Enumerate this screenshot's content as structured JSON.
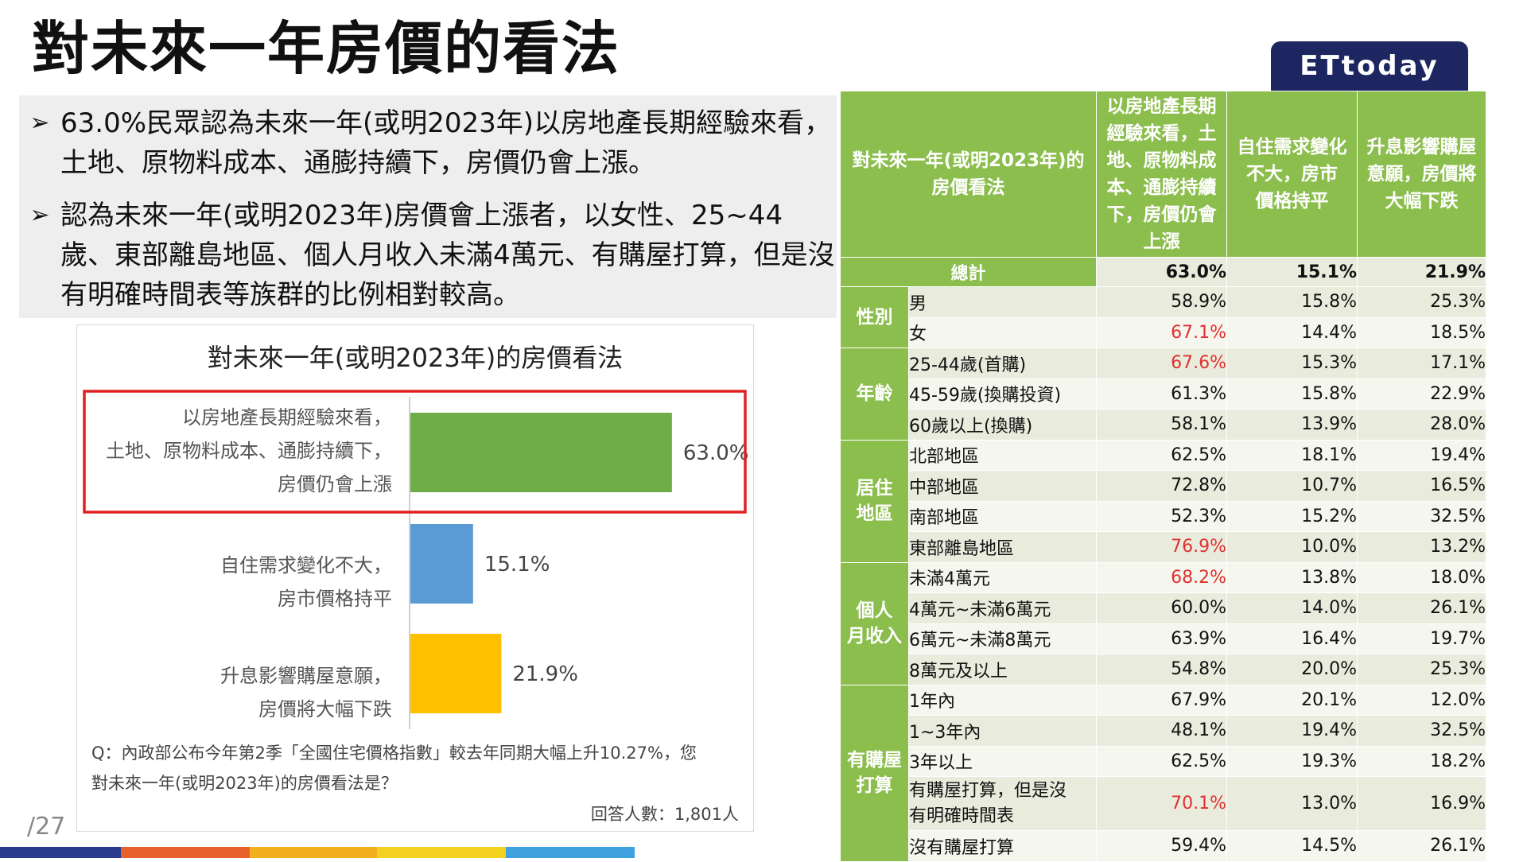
{
  "page": {
    "title": "對未來一年房價的看法",
    "logo": "ETtoday",
    "page_number": "/27",
    "bullets": [
      "63.0%民眾認為未來一年(或明2023年)以房地產長期經驗來看，土地、原物料成本、通膨持續下，房價仍會上漲。",
      "認為未來一年(或明2023年)房價會上漲者，以女性、25~44歲、東部離島地區、個人月收入未滿4萬元、有購屋打算，但是沒有明確時間表等族群的比例相對較高。"
    ],
    "bullet_marker": "➢",
    "bottom_bar_colors": [
      "#2a3a8c",
      "#e8602c",
      "#f2b01e",
      "#f3d21f",
      "#3fa2e0"
    ]
  },
  "chart_data": {
    "type": "bar",
    "orientation": "horizontal",
    "title": "對未來一年(或明2023年)的房價看法",
    "categories": [
      [
        "以房地產長期經驗來看，",
        "土地、原物料成本、通膨持續下，",
        "房價仍會上漲"
      ],
      [
        "自住需求變化不大，",
        "房市價格持平"
      ],
      [
        "升息影響購屋意願，",
        "房價將大幅下跌"
      ]
    ],
    "values": [
      63.0,
      15.1,
      21.9
    ],
    "value_labels": [
      "63.0%",
      "15.1%",
      "21.9%"
    ],
    "colors": [
      "#70ad47",
      "#5b9bd5",
      "#ffc000"
    ],
    "highlight_index": 0,
    "highlight_color": "#e02020",
    "xlim": [
      0,
      100
    ],
    "question": [
      "Q：內政部公布今年第2季「全國住宅價格指數」較去年同期大幅上升10.27%，您",
      "對未來一年(或明2023年)的房價看法是？"
    ],
    "sample_size": "回答人數：1,801人"
  },
  "table": {
    "headers": [
      "對未來一年(或明2023年)的房價看法",
      "以房地產長期經驗來看，土地、原物料成本、通膨持續下，房價仍會上漲",
      "自住需求變化不大，房市價格持平",
      "升息影響購屋意願，房價將大幅下跌"
    ],
    "header_lines": [
      [
        "對未來一年(或明2023年)的",
        "房價看法"
      ],
      [
        "以房地產長期",
        "經驗來看，土",
        "地、原物料成",
        "本、通膨持續",
        "下，房價仍會",
        "上漲"
      ],
      [
        "自住需求變化",
        "不大，房市",
        "價格持平"
      ],
      [
        "升息影響購屋",
        "意願，房價將",
        "大幅下跌"
      ]
    ],
    "total": {
      "label": "總計",
      "values": [
        "63.0%",
        "15.1%",
        "21.9%"
      ]
    },
    "groups": [
      {
        "name": [
          "性別"
        ],
        "rows": [
          {
            "label": "男",
            "values": [
              "58.9%",
              "15.8%",
              "25.3%"
            ],
            "highlight": false
          },
          {
            "label": "女",
            "values": [
              "67.1%",
              "14.4%",
              "18.5%"
            ],
            "highlight": true
          }
        ]
      },
      {
        "name": [
          "年齡"
        ],
        "rows": [
          {
            "label": "25-44歲(首購)",
            "values": [
              "67.6%",
              "15.3%",
              "17.1%"
            ],
            "highlight": true
          },
          {
            "label": "45-59歲(換購投資)",
            "values": [
              "61.3%",
              "15.8%",
              "22.9%"
            ],
            "highlight": false
          },
          {
            "label": "60歲以上(換購)",
            "values": [
              "58.1%",
              "13.9%",
              "28.0%"
            ],
            "highlight": false
          }
        ]
      },
      {
        "name": [
          "居住",
          "地區"
        ],
        "rows": [
          {
            "label": "北部地區",
            "values": [
              "62.5%",
              "18.1%",
              "19.4%"
            ],
            "highlight": false
          },
          {
            "label": "中部地區",
            "values": [
              "72.8%",
              "10.7%",
              "16.5%"
            ],
            "highlight": false
          },
          {
            "label": "南部地區",
            "values": [
              "52.3%",
              "15.2%",
              "32.5%"
            ],
            "highlight": false
          },
          {
            "label": "東部離島地區",
            "values": [
              "76.9%",
              "10.0%",
              "13.2%"
            ],
            "highlight": true
          }
        ]
      },
      {
        "name": [
          "個人",
          "月收入"
        ],
        "rows": [
          {
            "label": "未滿4萬元",
            "values": [
              "68.2%",
              "13.8%",
              "18.0%"
            ],
            "highlight": true
          },
          {
            "label": "4萬元~未滿6萬元",
            "values": [
              "60.0%",
              "14.0%",
              "26.1%"
            ],
            "highlight": false
          },
          {
            "label": "6萬元~未滿8萬元",
            "values": [
              "63.9%",
              "16.4%",
              "19.7%"
            ],
            "highlight": false
          },
          {
            "label": "8萬元及以上",
            "values": [
              "54.8%",
              "20.0%",
              "25.3%"
            ],
            "highlight": false
          }
        ]
      },
      {
        "name": [
          "有購屋",
          "打算"
        ],
        "rows": [
          {
            "label": "1年內",
            "values": [
              "67.9%",
              "20.1%",
              "12.0%"
            ],
            "highlight": false
          },
          {
            "label": "1~3年內",
            "values": [
              "48.1%",
              "19.4%",
              "32.5%"
            ],
            "highlight": false
          },
          {
            "label": "3年以上",
            "values": [
              "62.5%",
              "19.3%",
              "18.2%"
            ],
            "highlight": false
          },
          {
            "label": "有購屋打算，但是沒有明確時間表",
            "label_lines": [
              "有購屋打算，但是沒",
              "有明確時間表"
            ],
            "values": [
              "70.1%",
              "13.0%",
              "16.9%"
            ],
            "highlight": true
          },
          {
            "label": "沒有購屋打算",
            "values": [
              "59.4%",
              "14.5%",
              "26.1%"
            ],
            "highlight": false
          }
        ]
      }
    ]
  }
}
